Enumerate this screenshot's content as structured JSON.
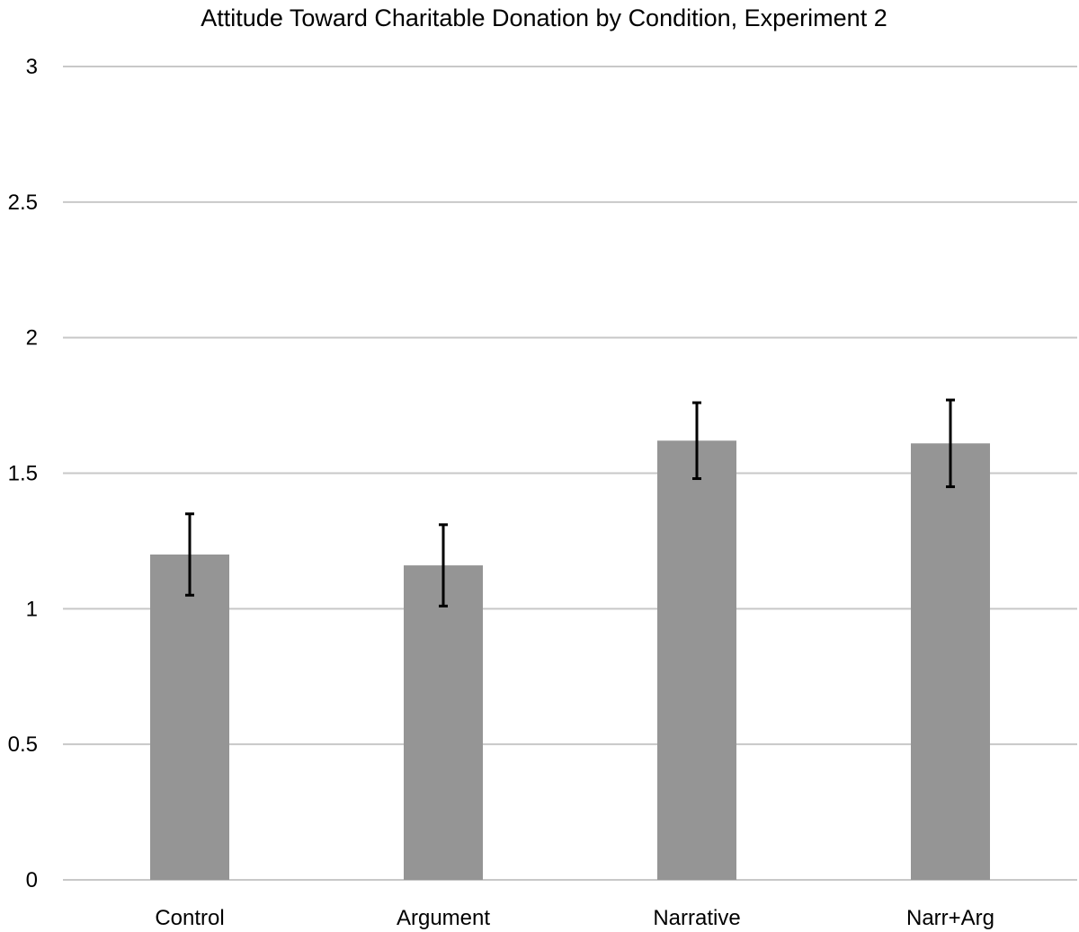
{
  "chart_data": {
    "type": "bar",
    "title": "Attitude Toward Charitable Donation by Condition, Experiment 2",
    "xlabel": "",
    "ylabel": "",
    "categories": [
      "Control",
      "Argument",
      "Narrative",
      "Narr+Arg"
    ],
    "values": [
      1.2,
      1.16,
      1.62,
      1.61
    ],
    "error_low": [
      1.05,
      1.01,
      1.48,
      1.45
    ],
    "error_high": [
      1.35,
      1.31,
      1.76,
      1.77
    ],
    "ylim": [
      0,
      3
    ],
    "yticks": [
      0,
      0.5,
      1,
      1.5,
      2,
      2.5,
      3
    ],
    "ytick_labels": [
      "0",
      "0.5",
      "1",
      "1.5",
      "2",
      "2.5",
      "3"
    ],
    "grid": true,
    "legend": "none",
    "colors": {
      "bar": "#959595",
      "error_bar": "#000000",
      "gridline": "#c8c8c8"
    }
  }
}
